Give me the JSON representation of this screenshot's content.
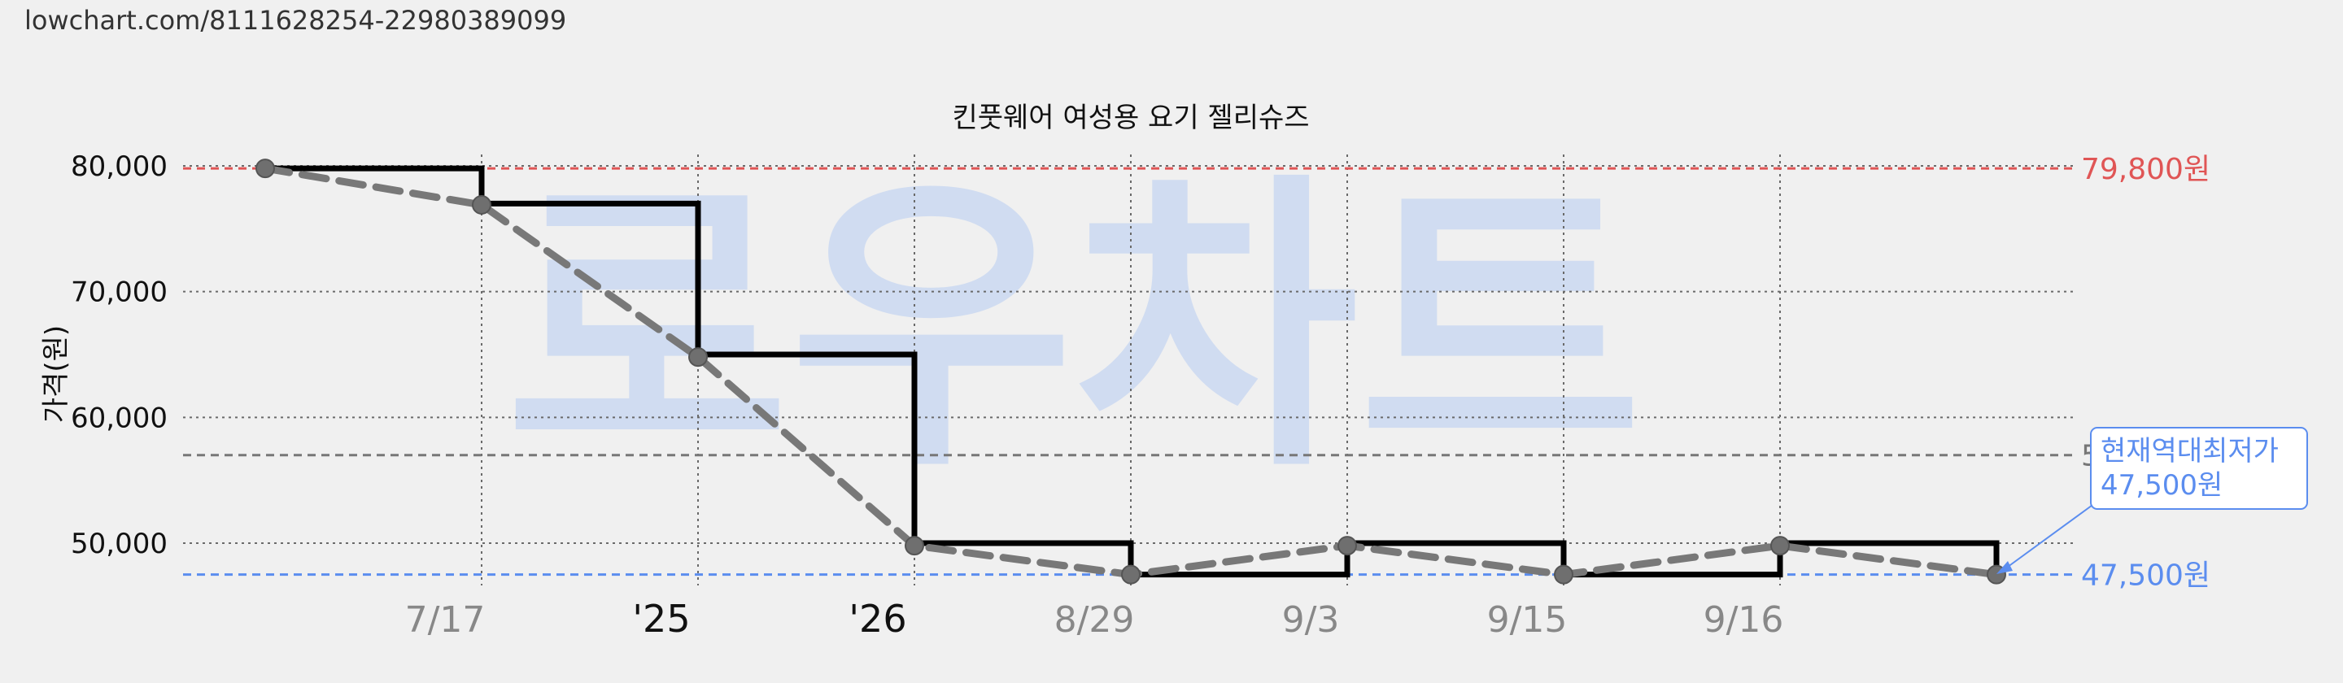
{
  "url_text": "lowchart.com/8111628254-22980389099",
  "watermark": "로우차트",
  "chart_data": {
    "type": "line",
    "title": "킨풋웨어 여성용 요기 젤리슈즈",
    "xlabel": "",
    "ylabel": "가격(원)",
    "ylim": [
      46000,
      80000
    ],
    "yticks": [
      50000,
      60000,
      70000,
      80000
    ],
    "ytick_labels": [
      "50,000",
      "60,000",
      "70,000",
      "80,000"
    ],
    "x_tick_labels": [
      "7/17",
      "'25",
      "'26",
      "8/29",
      "9/3",
      "9/15",
      "9/16"
    ],
    "x_tick_emphasis": [
      false,
      true,
      true,
      false,
      false,
      false,
      false
    ],
    "grid": true,
    "series": [
      {
        "style": "step",
        "color": "#000000",
        "values": [
          79800,
          77000,
          65000,
          50000,
          47500,
          50000,
          47500,
          50000,
          47500
        ]
      },
      {
        "style": "dashed-points",
        "color": "#787878",
        "values": [
          79800,
          76900,
          64800,
          49800,
          47500,
          49800,
          47500,
          49800,
          47500
        ]
      }
    ],
    "reference_lines": [
      {
        "value": 79800,
        "label": "79,800원",
        "color": "#e05555"
      },
      {
        "value": 57000,
        "label": "5",
        "color": "#777777"
      },
      {
        "value": 47500,
        "label": "47,500원",
        "color": "#5b8def"
      }
    ],
    "annotation": {
      "line1": "현재역대최저가",
      "line2": "47,500원",
      "color": "#5b8def"
    }
  }
}
